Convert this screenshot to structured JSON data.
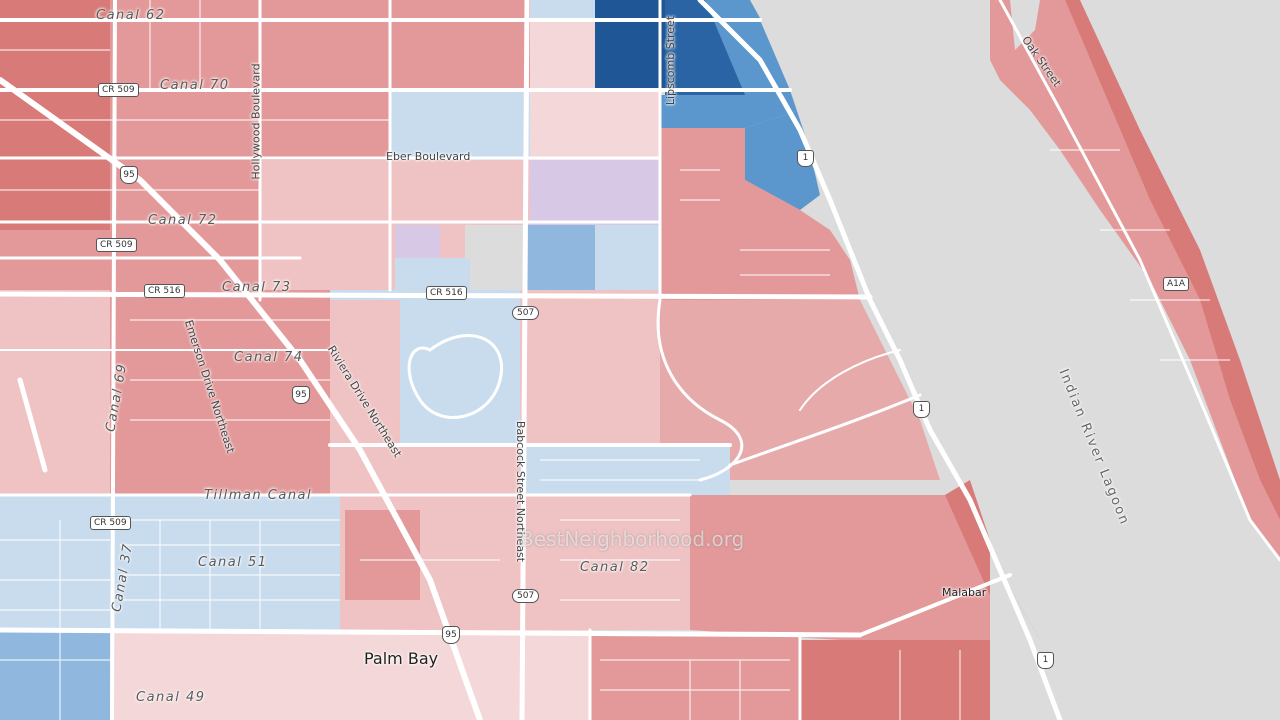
{
  "map": {
    "watermark": "BestNeighborhood.org",
    "colors": {
      "water": "#dcdcdc",
      "strong_red": "#d87a78",
      "red": "#e3999a",
      "light_red": "#efc3c4",
      "pale_red": "#f4d7d8",
      "light_blue": "#c9dcee",
      "blue": "#90b7dd",
      "mid_blue": "#5b97cc",
      "dark_blue": "#1e5696",
      "purple": "#d7c9e6",
      "roads": "#ffffff"
    },
    "labels": {
      "canal_62": "Canal 62",
      "canal_70": "Canal 70",
      "canal_72": "Canal 72",
      "canal_73": "Canal 73",
      "canal_74": "Canal 74",
      "canal_69": "Canal 69",
      "canal_37": "Canal 37",
      "canal_51": "Canal 51",
      "canal_49": "Canal 49",
      "canal_82": "Canal 82",
      "tillman_canal": "Tillman Canal",
      "hollywood_blvd": "Hollywood Boulevard",
      "eber_blvd": "Eber Boulevard",
      "lipscomb_st": "Lipscomb Street",
      "oak_st": "Oak Street",
      "emerson_dr": "Emerson Drive Northeast",
      "riviera_dr": "Riviera Drive Northeast",
      "babcock_st": "Babcock Street Northeast",
      "indian_river": "Indian River Lagoon",
      "palm_bay": "Palm Bay",
      "malabar": "Malabar"
    },
    "shields": {
      "cr509_a": "CR 509",
      "cr509_b": "CR 509",
      "cr509_c": "CR 509",
      "cr516_a": "CR 516",
      "cr516_b": "CR 516",
      "i95_a": "95",
      "i95_b": "95",
      "i95_c": "95",
      "sr507_a": "507",
      "sr507_b": "507",
      "us1_a": "1",
      "us1_b": "1",
      "us1_c": "1",
      "a1a": "A1A"
    }
  }
}
